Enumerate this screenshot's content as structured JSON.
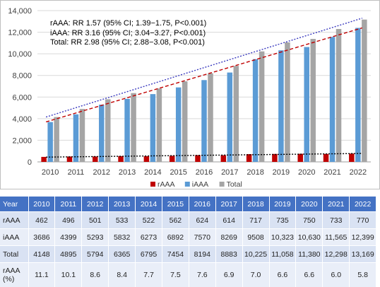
{
  "chart_data": {
    "type": "bar",
    "categories": [
      "2010",
      "2011",
      "2012",
      "2013",
      "2014",
      "2015",
      "2016",
      "2017",
      "2018",
      "2019",
      "2020",
      "2021",
      "2022"
    ],
    "series": [
      {
        "name": "rAAA",
        "values": [
          462,
          496,
          501,
          533,
          522,
          562,
          624,
          614,
          717,
          735,
          750,
          733,
          770
        ],
        "color": "#c00000"
      },
      {
        "name": "iAAA",
        "values": [
          3686,
          4399,
          5293,
          5832,
          6273,
          6892,
          7570,
          8269,
          9508,
          10323,
          10630,
          11565,
          12399
        ],
        "color": "#5b9bd5"
      },
      {
        "name": "Total",
        "values": [
          4148,
          4895,
          5794,
          6365,
          6795,
          7454,
          8194,
          8883,
          10225,
          11058,
          11380,
          12298,
          13169
        ],
        "color": "#a5a5a5"
      }
    ],
    "trendlines": [
      {
        "series": "rAAA",
        "style": "dotted",
        "color": "#000000",
        "from": 440,
        "to": 780
      },
      {
        "series": "iAAA",
        "style": "dashed",
        "color": "#c00000",
        "from": 3700,
        "to": 12400
      },
      {
        "series": "Total",
        "style": "dotted",
        "color": "#3b3bbf",
        "from": 4150,
        "to": 13300
      }
    ],
    "ylim": [
      0,
      14000
    ],
    "yticks": [
      "0",
      "2,000",
      "4,000",
      "6,000",
      "8,000",
      "10,000",
      "12,000",
      "14,000"
    ],
    "ytick_values": [
      0,
      2000,
      4000,
      6000,
      8000,
      10000,
      12000,
      14000
    ],
    "grid": true,
    "legend_position": "bottom",
    "annotations": [
      "rAAA: RR 1.57 (95% CI; 1.39−1.75, P<0.001)",
      "iAAA: RR 3.16 (95% CI; 3.04−3.27, P<0.001)",
      "Total: RR 2.98 (95% CI; 2.88−3.08, P<0.001)"
    ]
  },
  "table": {
    "header": [
      "Year",
      "2010",
      "2011",
      "2012",
      "2013",
      "2014",
      "2015",
      "2016",
      "2017",
      "2018",
      "2019",
      "2020",
      "2021",
      "2022"
    ],
    "rows": [
      {
        "label": "rAAA",
        "cells": [
          "462",
          "496",
          "501",
          "533",
          "522",
          "562",
          "624",
          "614",
          "717",
          "735",
          "750",
          "733",
          "770"
        ]
      },
      {
        "label": "iAAA",
        "cells": [
          "3686",
          "4399",
          "5293",
          "5832",
          "6273",
          "6892",
          "7570",
          "8269",
          "9508",
          "10,323",
          "10,630",
          "11,565",
          "12,399"
        ]
      },
      {
        "label": "Total",
        "cells": [
          "4148",
          "4895",
          "5794",
          "6365",
          "6795",
          "7454",
          "8194",
          "8883",
          "10,225",
          "11,058",
          "11,380",
          "12,298",
          "13,169"
        ]
      },
      {
        "label": "rAAA (%)",
        "label_line1": "rAAA",
        "label_line2": "(%)",
        "cells": [
          "11.1",
          "10.1",
          "8.6",
          "8.4",
          "7.7",
          "7.5",
          "7.6",
          "6.9",
          "7.0",
          "6.6",
          "6.6",
          "6.0",
          "5.8"
        ]
      }
    ]
  }
}
